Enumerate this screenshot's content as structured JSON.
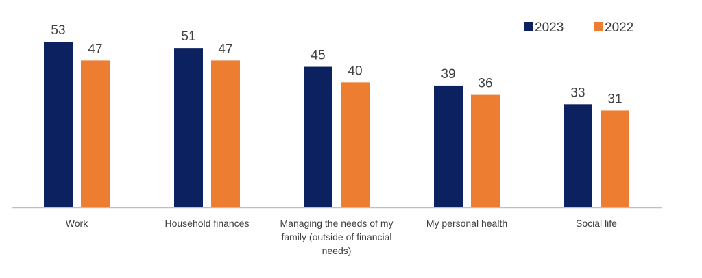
{
  "chart_data": {
    "type": "bar",
    "categories": [
      "Work",
      "Household finances",
      "Managing the needs of my family (outside of financial needs)",
      "My personal health",
      "Social life"
    ],
    "category_lines": [
      [
        "Work"
      ],
      [
        "Household finances"
      ],
      [
        "Managing the needs of my",
        "family (outside of financial",
        "needs)"
      ],
      [
        "My personal health"
      ],
      [
        "Social life"
      ]
    ],
    "series": [
      {
        "name": "2023",
        "values": [
          53,
          51,
          45,
          39,
          33
        ],
        "color": "#0C2160"
      },
      {
        "name": "2022",
        "values": [
          47,
          47,
          40,
          36,
          31
        ],
        "color": "#ED7D31"
      }
    ],
    "ylim": [
      0,
      53
    ],
    "grid": false,
    "legend_position": "top-right",
    "axis_color": "#BFBFBF",
    "text_color": "#404040",
    "title": "",
    "xlabel": "",
    "ylabel": ""
  }
}
